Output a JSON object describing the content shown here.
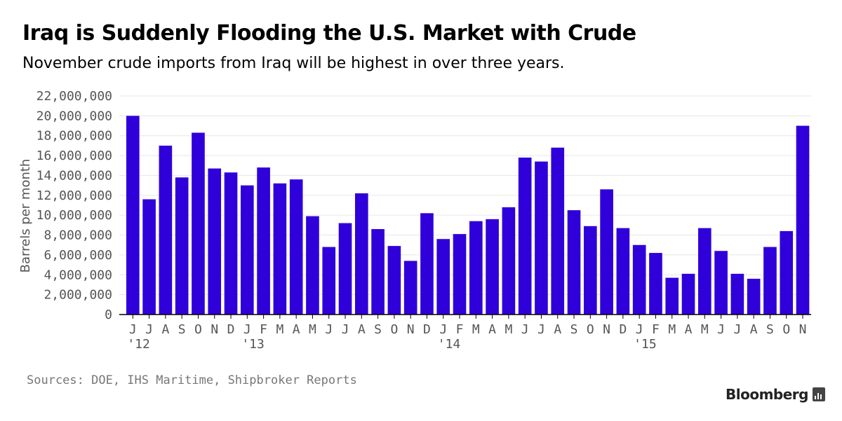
{
  "header": {
    "title": "Iraq is Suddenly Flooding the U.S. Market with Crude",
    "subtitle": "November crude imports from Iraq will be highest in over three years."
  },
  "footer": {
    "source": "Sources: DOE, IHS Maritime, Shipbroker Reports",
    "brand": "Bloomberg"
  },
  "colors": {
    "bar": "#2f00d9",
    "grid": "#e6e6e6",
    "axis": "#000000",
    "tick_text": "#555555"
  },
  "chart_data": {
    "type": "bar",
    "title": "Iraq is Suddenly Flooding the U.S. Market with Crude",
    "subtitle": "November crude imports from Iraq will be highest in over three years.",
    "xlabel": "",
    "ylabel": "Barrels per month",
    "ylim": [
      0,
      22000000
    ],
    "yticks": [
      0,
      2000000,
      4000000,
      6000000,
      8000000,
      10000000,
      12000000,
      14000000,
      16000000,
      18000000,
      20000000,
      22000000
    ],
    "ytick_labels": [
      "0",
      "2,000,000",
      "4,000,000",
      "6,000,000",
      "8,000,000",
      "10,000,000",
      "12,000,000",
      "14,000,000",
      "16,000,000",
      "18,000,000",
      "20,000,000",
      "22,000,000"
    ],
    "grid": true,
    "categories": [
      "J",
      "J",
      "A",
      "S",
      "O",
      "N",
      "D",
      "J",
      "F",
      "M",
      "A",
      "M",
      "J",
      "J",
      "A",
      "S",
      "O",
      "N",
      "D",
      "J",
      "F",
      "M",
      "A",
      "M",
      "J",
      "J",
      "A",
      "S",
      "O",
      "N",
      "D",
      "J",
      "F",
      "M",
      "A",
      "M",
      "J",
      "J",
      "A",
      "S",
      "O",
      "N"
    ],
    "year_labels": [
      {
        "index": 0,
        "label": "'12"
      },
      {
        "index": 7,
        "label": "'13"
      },
      {
        "index": 19,
        "label": "'14"
      },
      {
        "index": 31,
        "label": "'15"
      }
    ],
    "values": [
      20000000,
      11600000,
      17000000,
      13800000,
      18300000,
      14700000,
      14300000,
      13000000,
      14800000,
      13200000,
      13600000,
      9900000,
      6800000,
      9200000,
      12200000,
      8600000,
      6900000,
      5400000,
      10200000,
      7600000,
      8100000,
      9400000,
      9600000,
      10800000,
      15800000,
      15400000,
      16800000,
      10500000,
      8900000,
      12600000,
      8700000,
      7000000,
      6200000,
      3700000,
      4100000,
      8700000,
      6400000,
      4100000,
      3600000,
      6800000,
      8400000,
      19000000
    ]
  }
}
